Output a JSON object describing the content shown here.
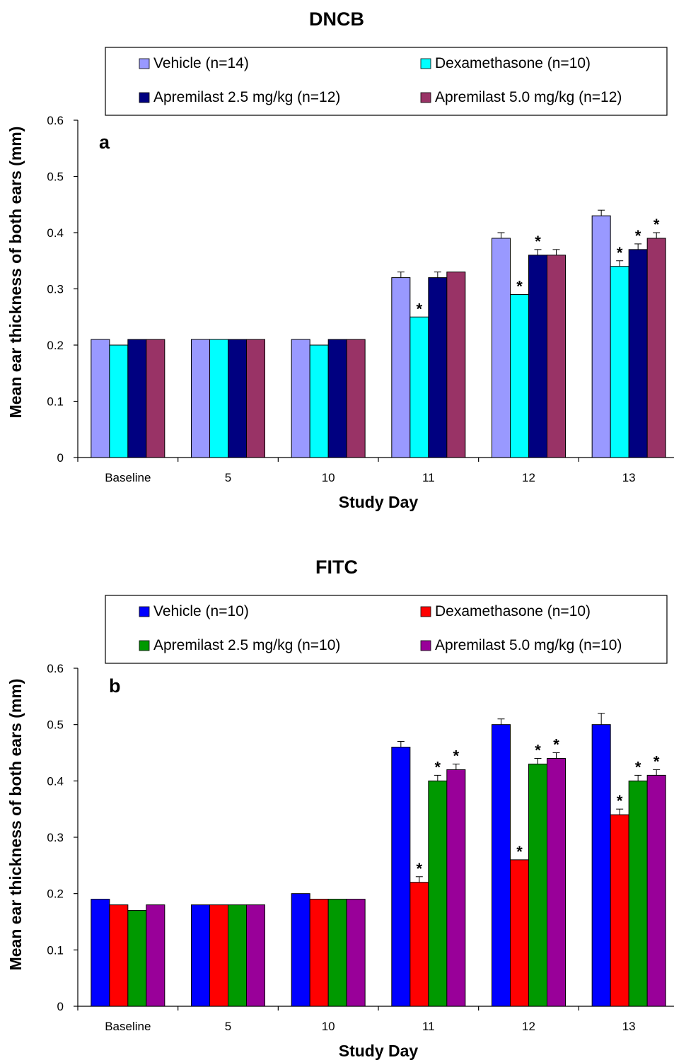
{
  "figure": {
    "charts_count": 2
  },
  "chart_data": [
    {
      "type": "bar",
      "title": "DNCB",
      "panel_label": "a",
      "xlabel": "Study Day",
      "ylabel": "Mean ear thickness of both ears (mm)",
      "ylim": [
        0,
        0.6
      ],
      "yticks": [
        "0",
        "0.1",
        "0.2",
        "0.3",
        "0.4",
        "0.5",
        "0.6"
      ],
      "ytick_values": [
        0,
        0.1,
        0.2,
        0.3,
        0.4,
        0.5,
        0.6
      ],
      "categories": [
        "Baseline",
        "5",
        "10",
        "11",
        "12",
        "13"
      ],
      "legend_position": "top",
      "grid": false,
      "series": [
        {
          "name": "Vehicle (n=14)",
          "color": "#9999ff",
          "values": [
            0.21,
            0.21,
            0.21,
            0.32,
            0.39,
            0.43
          ],
          "errors": [
            0,
            0,
            0,
            0.01,
            0.01,
            0.01
          ],
          "significant": [
            false,
            false,
            false,
            false,
            false,
            false
          ]
        },
        {
          "name": "Dexamethasone (n=10)",
          "color": "#00ffff",
          "values": [
            0.2,
            0.21,
            0.2,
            0.25,
            0.29,
            0.34
          ],
          "errors": [
            0,
            0,
            0,
            0,
            0,
            0.01
          ],
          "significant": [
            false,
            false,
            false,
            true,
            true,
            true
          ]
        },
        {
          "name": "Apremilast 2.5 mg/kg (n=12)",
          "color": "#000080",
          "values": [
            0.21,
            0.21,
            0.21,
            0.32,
            0.36,
            0.37
          ],
          "errors": [
            0,
            0,
            0,
            0.01,
            0.01,
            0.01
          ],
          "significant": [
            false,
            false,
            false,
            false,
            true,
            true
          ]
        },
        {
          "name": "Apremilast 5.0 mg/kg (n=12)",
          "color": "#993366",
          "values": [
            0.21,
            0.21,
            0.21,
            0.33,
            0.36,
            0.39
          ],
          "errors": [
            0,
            0,
            0,
            0,
            0.01,
            0.01
          ],
          "significant": [
            false,
            false,
            false,
            false,
            false,
            true
          ]
        }
      ]
    },
    {
      "type": "bar",
      "title": "FITC",
      "panel_label": "b",
      "xlabel": "Study Day",
      "ylabel": "Mean ear thickness of both ears (mm)",
      "ylim": [
        0,
        0.6
      ],
      "yticks": [
        "0",
        "0.1",
        "0.2",
        "0.3",
        "0.4",
        "0.5",
        "0.6"
      ],
      "ytick_values": [
        0,
        0.1,
        0.2,
        0.3,
        0.4,
        0.5,
        0.6
      ],
      "categories": [
        "Baseline",
        "5",
        "10",
        "11",
        "12",
        "13"
      ],
      "legend_position": "top",
      "grid": false,
      "series": [
        {
          "name": "Vehicle (n=10)",
          "color": "#0000ff",
          "values": [
            0.19,
            0.18,
            0.2,
            0.46,
            0.5,
            0.5
          ],
          "errors": [
            0,
            0,
            0,
            0.01,
            0.01,
            0.02
          ],
          "significant": [
            false,
            false,
            false,
            false,
            false,
            false
          ]
        },
        {
          "name": "Dexamethasone (n=10)",
          "color": "#ff0000",
          "values": [
            0.18,
            0.18,
            0.19,
            0.22,
            0.26,
            0.34
          ],
          "errors": [
            0,
            0,
            0,
            0.01,
            0,
            0.01
          ],
          "significant": [
            false,
            false,
            false,
            true,
            true,
            true
          ]
        },
        {
          "name": "Apremilast 2.5 mg/kg (n=10)",
          "color": "#009900",
          "values": [
            0.17,
            0.18,
            0.19,
            0.4,
            0.43,
            0.4
          ],
          "errors": [
            0,
            0,
            0,
            0.01,
            0.01,
            0.01
          ],
          "significant": [
            false,
            false,
            false,
            true,
            true,
            true
          ]
        },
        {
          "name": "Apremilast 5.0 mg/kg (n=10)",
          "color": "#990099",
          "values": [
            0.18,
            0.18,
            0.19,
            0.42,
            0.44,
            0.41
          ],
          "errors": [
            0,
            0,
            0,
            0.01,
            0.01,
            0.01
          ],
          "significant": [
            false,
            false,
            false,
            true,
            true,
            true
          ]
        }
      ]
    }
  ]
}
